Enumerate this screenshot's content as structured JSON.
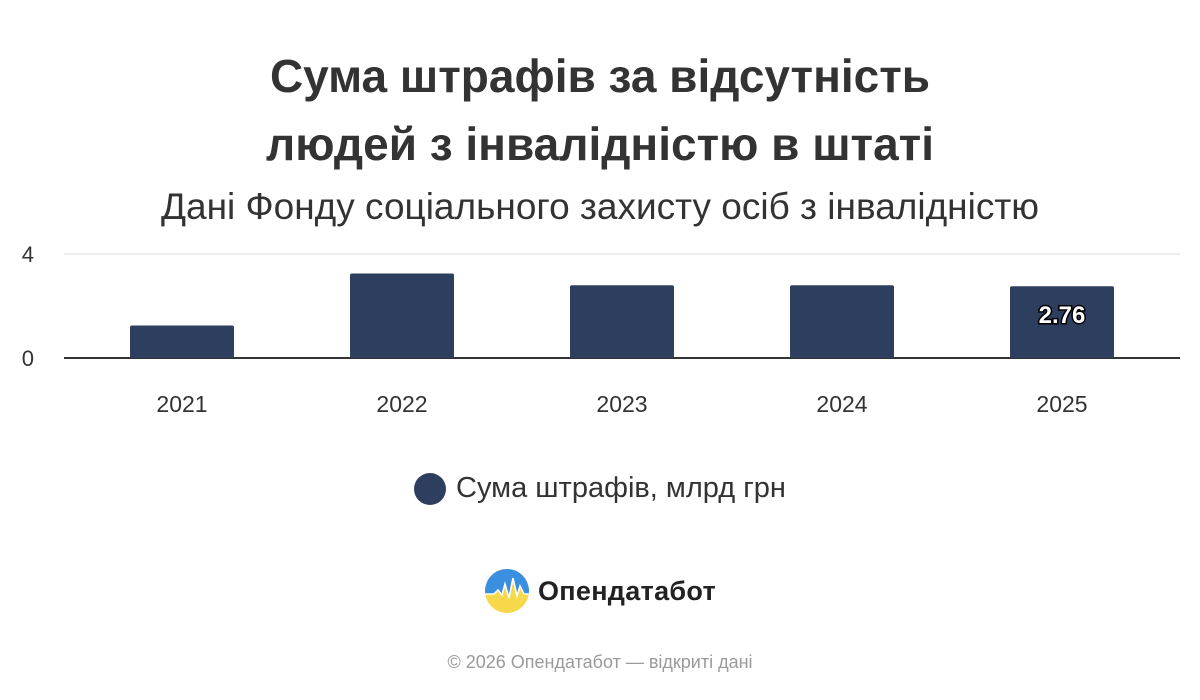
{
  "header": {
    "title_line1": "Сума штрафів за відсутність",
    "title_line2": "людей з інвалідністю в штаті",
    "subtitle": "Дані Фонду соціального захисту осіб з інвалідністю"
  },
  "chart_data": {
    "type": "bar",
    "title": "Сума штрафів за відсутність людей з інвалідністю в штаті",
    "subtitle": "Дані Фонду соціального захисту осіб з інвалідністю",
    "categories": [
      "2021",
      "2022",
      "2023",
      "2024",
      "2025"
    ],
    "series": [
      {
        "name": "Сума штрафів, млрд грн",
        "values": [
          1.25,
          3.25,
          2.8,
          2.8,
          2.76
        ],
        "color": "#2e3e5e"
      }
    ],
    "value_labels": [
      {
        "index": 4,
        "text": "2.76"
      }
    ],
    "yticks": [
      "0",
      "4"
    ],
    "ylim": [
      0,
      4
    ],
    "xlabel": "",
    "ylabel": "",
    "grid": true,
    "legend": "bottom"
  },
  "legend": {
    "label": "Сума штрафів, млрд грн",
    "color": "#2e3e5e"
  },
  "brand": {
    "name": "Опендатабот",
    "logo_icon": "opendatabot-logo-icon"
  },
  "footer": {
    "text": "© 2026 Опендатабот — відкриті дані"
  },
  "colors": {
    "bar": "#2e3e5e",
    "grid": "#e6e6e6",
    "axis": "#333333",
    "text": "#333333"
  }
}
